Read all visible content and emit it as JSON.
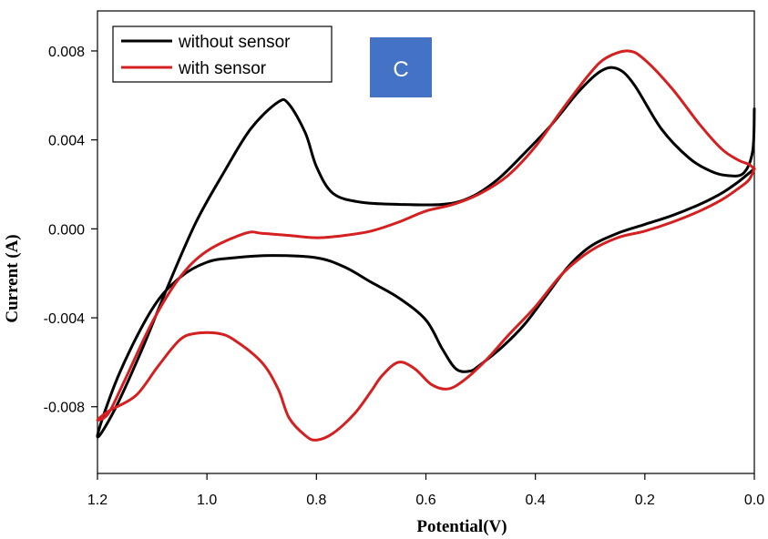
{
  "chart_data": {
    "type": "line",
    "xlabel": "Potential(V)",
    "ylabel": "Current (A)",
    "xlim": [
      1.2,
      0.0
    ],
    "ylim": [
      -0.011,
      0.0098
    ],
    "x_reversed": true,
    "x_ticks": [
      "1.2",
      "1.0",
      "0.8",
      "0.6",
      "0.4",
      "0.2",
      "0.0"
    ],
    "x_tick_values": [
      1.2,
      1.0,
      0.8,
      0.6,
      0.4,
      0.2,
      0.0
    ],
    "y_ticks": [
      "0.008",
      "0.004",
      "0.000",
      "-0.004",
      "-0.008"
    ],
    "y_tick_values": [
      0.008,
      0.004,
      0.0,
      -0.004,
      -0.008
    ],
    "grid": false,
    "legend_position": "top-left",
    "panel_label": "C",
    "panel_label_color": "#4472c4",
    "series": [
      {
        "name": "without sensor",
        "color": "#000000",
        "points": [
          [
            0.0,
            0.0054
          ],
          [
            0.003,
            0.0035
          ],
          [
            0.02,
            0.0025
          ],
          [
            0.05,
            0.0024
          ],
          [
            0.08,
            0.0026
          ],
          [
            0.12,
            0.0032
          ],
          [
            0.17,
            0.0045
          ],
          [
            0.22,
            0.0065
          ],
          [
            0.25,
            0.0072
          ],
          [
            0.28,
            0.0071
          ],
          [
            0.32,
            0.0062
          ],
          [
            0.37,
            0.0047
          ],
          [
            0.42,
            0.0034
          ],
          [
            0.47,
            0.0022
          ],
          [
            0.52,
            0.0014
          ],
          [
            0.57,
            0.0011
          ],
          [
            0.65,
            0.0011
          ],
          [
            0.72,
            0.0012
          ],
          [
            0.77,
            0.0016
          ],
          [
            0.8,
            0.0028
          ],
          [
            0.82,
            0.0043
          ],
          [
            0.85,
            0.0056
          ],
          [
            0.87,
            0.0057
          ],
          [
            0.92,
            0.0045
          ],
          [
            0.97,
            0.0025
          ],
          [
            1.02,
            0.0003
          ],
          [
            1.07,
            -0.0025
          ],
          [
            1.12,
            -0.0055
          ],
          [
            1.17,
            -0.0082
          ],
          [
            1.2,
            -0.0093
          ],
          [
            1.16,
            -0.0065
          ],
          [
            1.1,
            -0.0036
          ],
          [
            1.05,
            -0.0022
          ],
          [
            1.0,
            -0.0015
          ],
          [
            0.95,
            -0.0013
          ],
          [
            0.88,
            -0.0012
          ],
          [
            0.8,
            -0.0013
          ],
          [
            0.75,
            -0.0017
          ],
          [
            0.7,
            -0.0024
          ],
          [
            0.65,
            -0.0031
          ],
          [
            0.6,
            -0.0041
          ],
          [
            0.57,
            -0.0054
          ],
          [
            0.545,
            -0.0063
          ],
          [
            0.52,
            -0.0064
          ],
          [
            0.5,
            -0.0061
          ],
          [
            0.46,
            -0.0053
          ],
          [
            0.42,
            -0.0043
          ],
          [
            0.38,
            -0.003
          ],
          [
            0.34,
            -0.0017
          ],
          [
            0.3,
            -0.0008
          ],
          [
            0.25,
            -0.0002
          ],
          [
            0.2,
            0.0002
          ],
          [
            0.15,
            0.0006
          ],
          [
            0.1,
            0.0011
          ],
          [
            0.06,
            0.0016
          ],
          [
            0.03,
            0.0021
          ],
          [
            0.01,
            0.0025
          ],
          [
            0.0,
            0.0027
          ]
        ]
      },
      {
        "name": "with sensor",
        "color": "#d42020",
        "points": [
          [
            0.0,
            0.0027
          ],
          [
            0.01,
            0.0029
          ],
          [
            0.03,
            0.0031
          ],
          [
            0.06,
            0.0036
          ],
          [
            0.1,
            0.0047
          ],
          [
            0.15,
            0.0063
          ],
          [
            0.2,
            0.0076
          ],
          [
            0.23,
            0.008
          ],
          [
            0.27,
            0.0077
          ],
          [
            0.3,
            0.007
          ],
          [
            0.35,
            0.0054
          ],
          [
            0.4,
            0.0037
          ],
          [
            0.45,
            0.0024
          ],
          [
            0.5,
            0.0016
          ],
          [
            0.55,
            0.0011
          ],
          [
            0.6,
            0.0008
          ],
          [
            0.65,
            0.0003
          ],
          [
            0.7,
            -0.0001
          ],
          [
            0.75,
            -0.0003
          ],
          [
            0.8,
            -0.0004
          ],
          [
            0.85,
            -0.0003
          ],
          [
            0.9,
            -0.0002
          ],
          [
            0.93,
            -0.0002
          ],
          [
            1.0,
            -0.001
          ],
          [
            1.05,
            -0.0022
          ],
          [
            1.1,
            -0.0042
          ],
          [
            1.15,
            -0.0068
          ],
          [
            1.18,
            -0.0083
          ],
          [
            1.2,
            -0.0086
          ],
          [
            1.18,
            -0.0082
          ],
          [
            1.13,
            -0.0075
          ],
          [
            1.09,
            -0.0062
          ],
          [
            1.05,
            -0.005
          ],
          [
            1.02,
            -0.0047
          ],
          [
            0.98,
            -0.0047
          ],
          [
            0.95,
            -0.005
          ],
          [
            0.9,
            -0.006
          ],
          [
            0.87,
            -0.0072
          ],
          [
            0.85,
            -0.0085
          ],
          [
            0.82,
            -0.0093
          ],
          [
            0.8,
            -0.0095
          ],
          [
            0.77,
            -0.0092
          ],
          [
            0.73,
            -0.0083
          ],
          [
            0.7,
            -0.0073
          ],
          [
            0.68,
            -0.0066
          ],
          [
            0.65,
            -0.006
          ],
          [
            0.62,
            -0.0063
          ],
          [
            0.59,
            -0.007
          ],
          [
            0.56,
            -0.0072
          ],
          [
            0.53,
            -0.0068
          ],
          [
            0.49,
            -0.0059
          ],
          [
            0.45,
            -0.0048
          ],
          [
            0.4,
            -0.0035
          ],
          [
            0.35,
            -0.002
          ],
          [
            0.3,
            -0.001
          ],
          [
            0.25,
            -0.0004
          ],
          [
            0.2,
            -0.0001
          ],
          [
            0.15,
            0.0003
          ],
          [
            0.1,
            0.0008
          ],
          [
            0.06,
            0.0013
          ],
          [
            0.03,
            0.0018
          ],
          [
            0.01,
            0.0022
          ],
          [
            0.0,
            0.0027
          ]
        ]
      }
    ]
  }
}
